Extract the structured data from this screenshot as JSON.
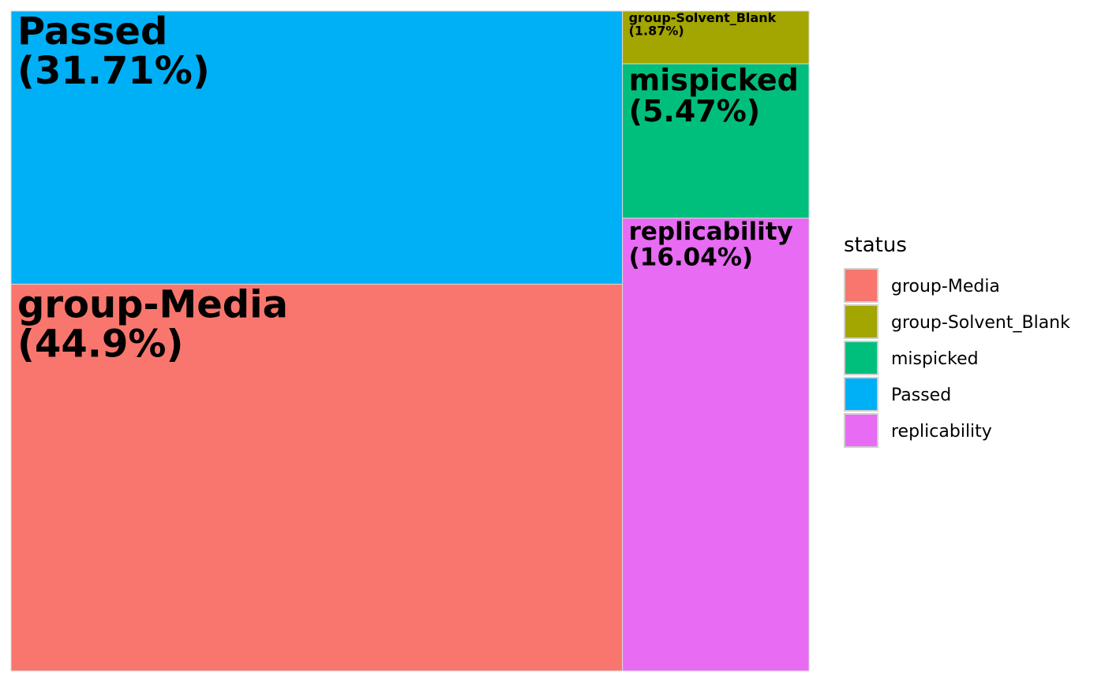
{
  "chart_data": {
    "type": "treemap",
    "legend": {
      "title": "status",
      "position": "right",
      "entries": [
        {
          "name": "group-Media",
          "color": "#F8766D"
        },
        {
          "name": "group-Solvent_Blank",
          "color": "#A3A500"
        },
        {
          "name": "mispicked",
          "color": "#00BF7D"
        },
        {
          "name": "Passed",
          "color": "#00B0F6"
        },
        {
          "name": "replicability",
          "color": "#E76BF3"
        }
      ]
    },
    "tiles": [
      {
        "status": "Passed",
        "percent": 31.71,
        "label": "Passed",
        "percent_label": "(31.71%)",
        "color": "#00B0F6"
      },
      {
        "status": "group-Media",
        "percent": 44.9,
        "label": "group-Media",
        "percent_label": "(44.9%)",
        "color": "#F8766D"
      },
      {
        "status": "group-Solvent_Blank",
        "percent": 1.87,
        "label": "group-Solvent_Blank",
        "percent_label": "(1.87%)",
        "color": "#A3A500"
      },
      {
        "status": "mispicked",
        "percent": 5.47,
        "label": "mispicked",
        "percent_label": "(5.47%)",
        "color": "#00BF7D"
      },
      {
        "status": "replicability",
        "percent": 16.04,
        "label": "replicability",
        "percent_label": "(16.04%)",
        "color": "#E76BF3"
      }
    ]
  }
}
